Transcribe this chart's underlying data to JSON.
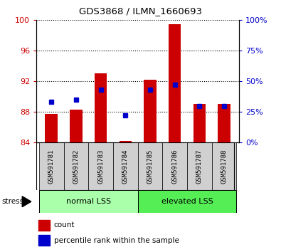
{
  "title": "GDS3868 / ILMN_1660693",
  "samples": [
    "GSM591781",
    "GSM591782",
    "GSM591783",
    "GSM591784",
    "GSM591785",
    "GSM591786",
    "GSM591787",
    "GSM591788"
  ],
  "count_values": [
    87.7,
    88.3,
    93.0,
    84.15,
    92.2,
    99.5,
    89.0,
    89.0
  ],
  "percentile_values": [
    33,
    35,
    43,
    22,
    43,
    47,
    30,
    30
  ],
  "count_base": 84.0,
  "ylim_left": [
    84,
    100
  ],
  "ylim_right": [
    0,
    100
  ],
  "yticks_left": [
    84,
    88,
    92,
    96,
    100
  ],
  "yticks_right": [
    0,
    25,
    50,
    75,
    100
  ],
  "ytick_labels_right": [
    "0%",
    "25%",
    "50%",
    "75%",
    "100%"
  ],
  "bar_color": "#cc0000",
  "dot_color": "#0000cc",
  "group1_label": "normal LSS",
  "group2_label": "elevated LSS",
  "group1_indices": [
    0,
    1,
    2,
    3
  ],
  "group2_indices": [
    4,
    5,
    6,
    7
  ],
  "stress_label": "stress",
  "legend_count": "count",
  "legend_percentile": "percentile rank within the sample",
  "group1_color": "#aaffaa",
  "group2_color": "#55ee55",
  "left_tick_color": "#cc0000",
  "right_tick_color": "#0000cc",
  "sample_bg_color": "#d0d0d0",
  "plot_bg": "#ffffff",
  "bar_width": 0.5
}
